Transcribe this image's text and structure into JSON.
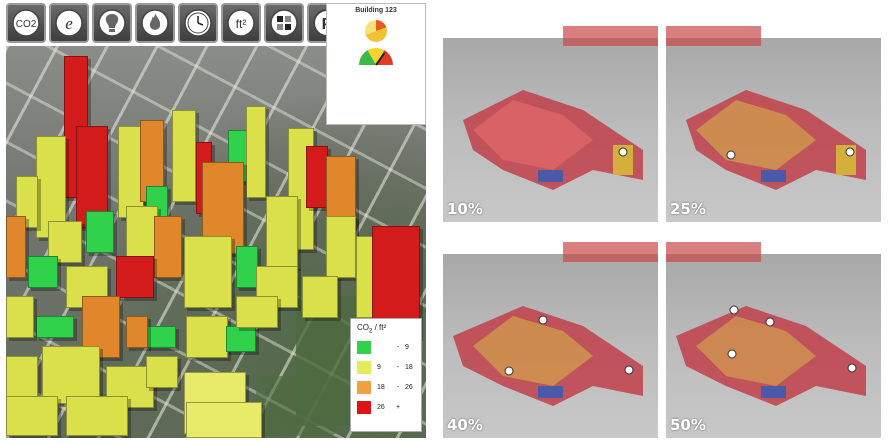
{
  "toolbar": {
    "buttons": [
      {
        "name": "co2-button",
        "icon": "co2-icon",
        "text": "CO2"
      },
      {
        "name": "energy-e-button",
        "icon": "energy-e-icon",
        "text": "e"
      },
      {
        "name": "lightbulb-button",
        "icon": "lightbulb-icon",
        "text": ""
      },
      {
        "name": "flame-button",
        "icon": "flame-icon",
        "text": ""
      },
      {
        "name": "clock-button",
        "icon": "clock-icon",
        "text": ""
      },
      {
        "name": "square-feet-button",
        "icon": "square-feet-icon",
        "text": "ft²"
      },
      {
        "name": "grid-button",
        "icon": "grid-icon",
        "text": ""
      },
      {
        "name": "parking-button",
        "icon": "parking-icon",
        "text": "P"
      }
    ]
  },
  "info_panel": {
    "title": "Building 123"
  },
  "legend": {
    "title": "CO",
    "title_sub": "2",
    "title_suffix": " / ft²",
    "items": [
      {
        "color": "#2fd24a",
        "low": "",
        "sep": "-",
        "high": "9"
      },
      {
        "color": "#e3ec5a",
        "low": "9",
        "sep": "-",
        "high": "18"
      },
      {
        "color": "#f0a045",
        "low": "18",
        "sep": "-",
        "high": "26"
      },
      {
        "color": "#e01414",
        "low": "26",
        "sep": "+",
        "high": ""
      }
    ]
  },
  "simulations": [
    {
      "label": "10%"
    },
    {
      "label": "25%"
    },
    {
      "label": "40%"
    },
    {
      "label": "50%"
    }
  ],
  "colors": {
    "low": "#2fd24a",
    "medium": "#d9e04a",
    "high": "#e0862b",
    "very_high": "#d31b1b"
  }
}
